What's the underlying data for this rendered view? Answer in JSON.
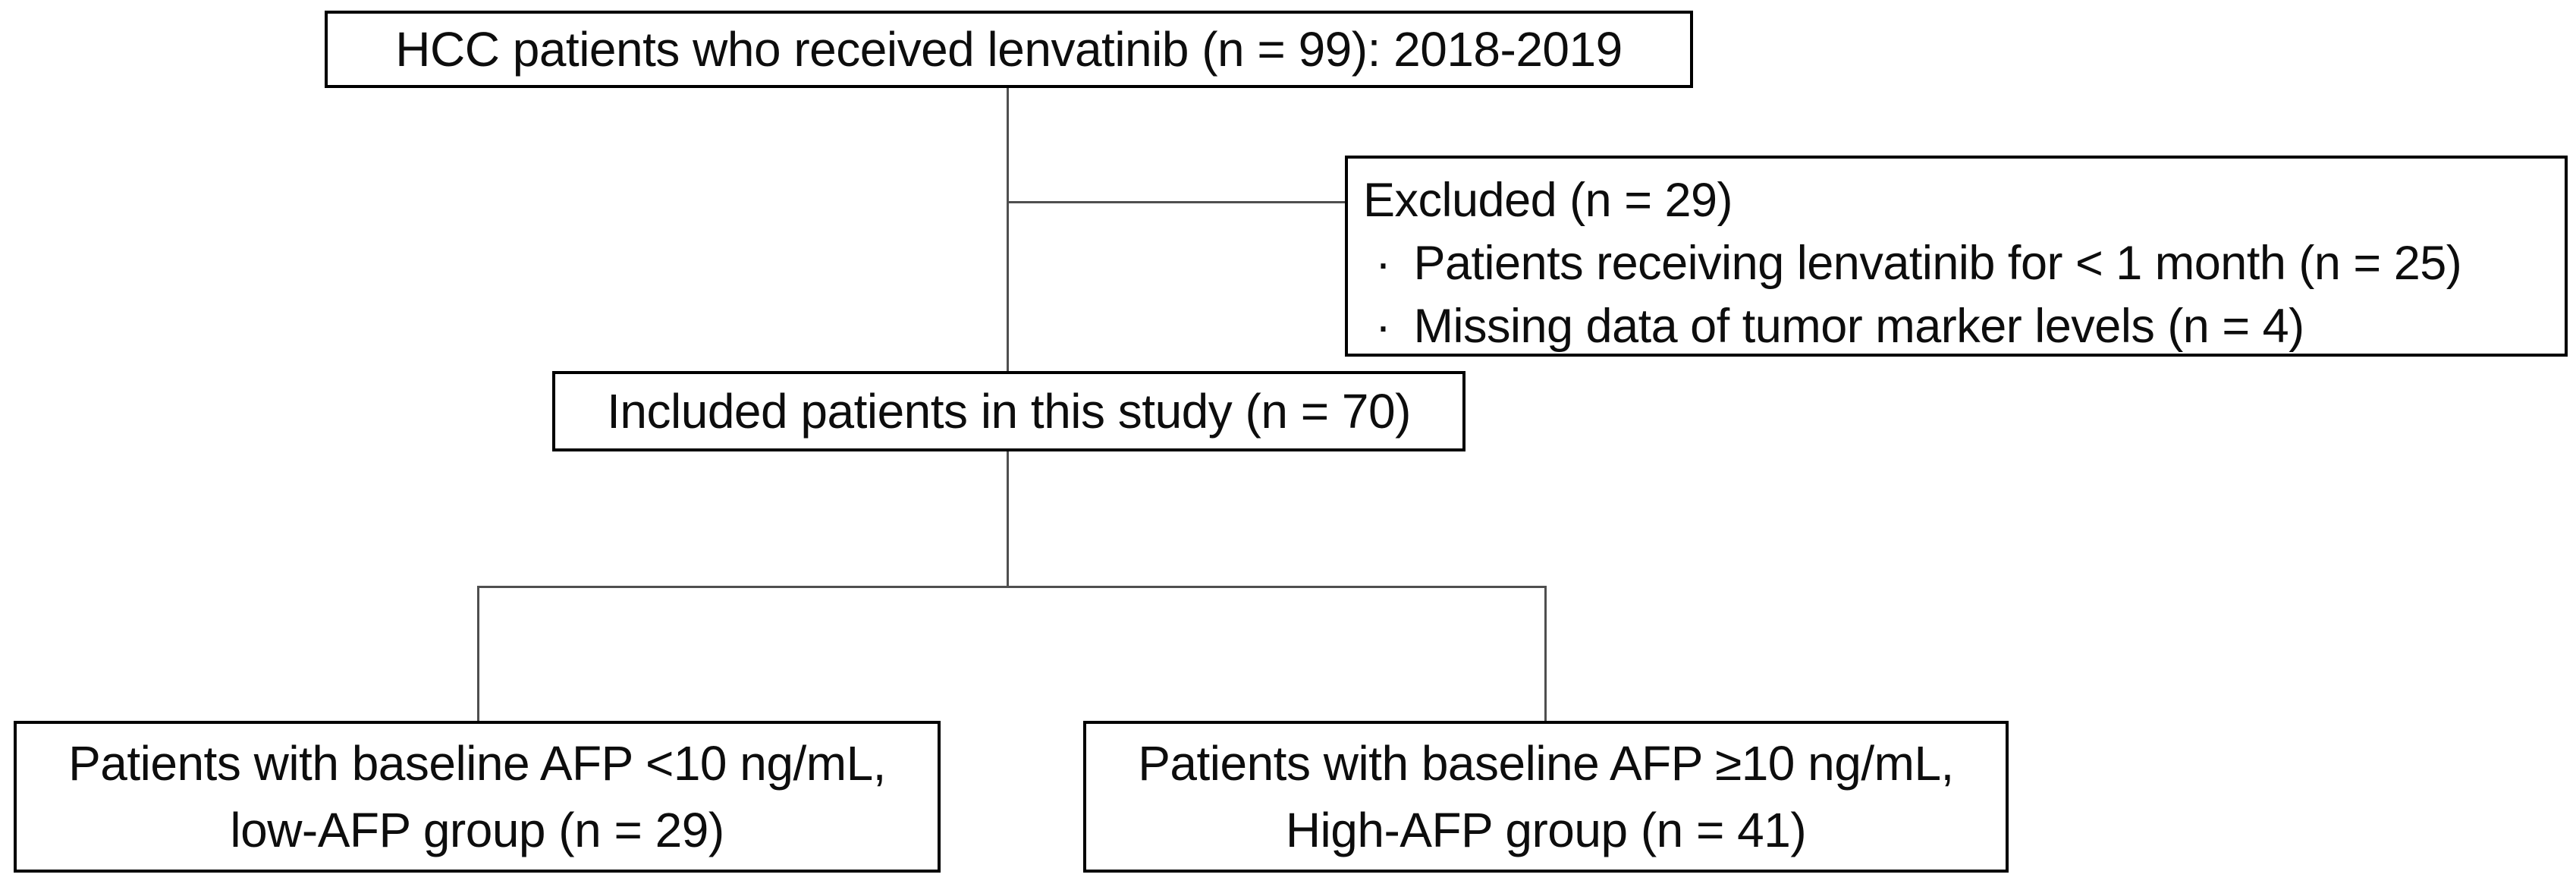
{
  "figure": {
    "type": "patient-flow-diagram",
    "colors": {
      "background": "#ffffff",
      "box_border": "#000000",
      "connector_line": "#4f4f4f",
      "text": "#0d0d0d"
    },
    "top_box": {
      "text": "HCC patients who received lenvatinib (n = 99): 2018-2019"
    },
    "excluded_box": {
      "title": "Excluded (n = 29)",
      "bullet_glyph": "·",
      "items": [
        "Patients receiving lenvatinib for < 1 month (n = 25)",
        "Missing data of tumor marker levels (n = 4)"
      ]
    },
    "included_box": {
      "text": "Included patients in this study (n = 70)"
    },
    "low_afp_box": {
      "line1": "Patients with baseline AFP <10 ng/mL,",
      "line2": "low-AFP group (n = 29)"
    },
    "high_afp_box": {
      "line1": "Patients with baseline AFP ≥10 ng/mL,",
      "line2": "High-AFP group (n = 41)"
    }
  }
}
